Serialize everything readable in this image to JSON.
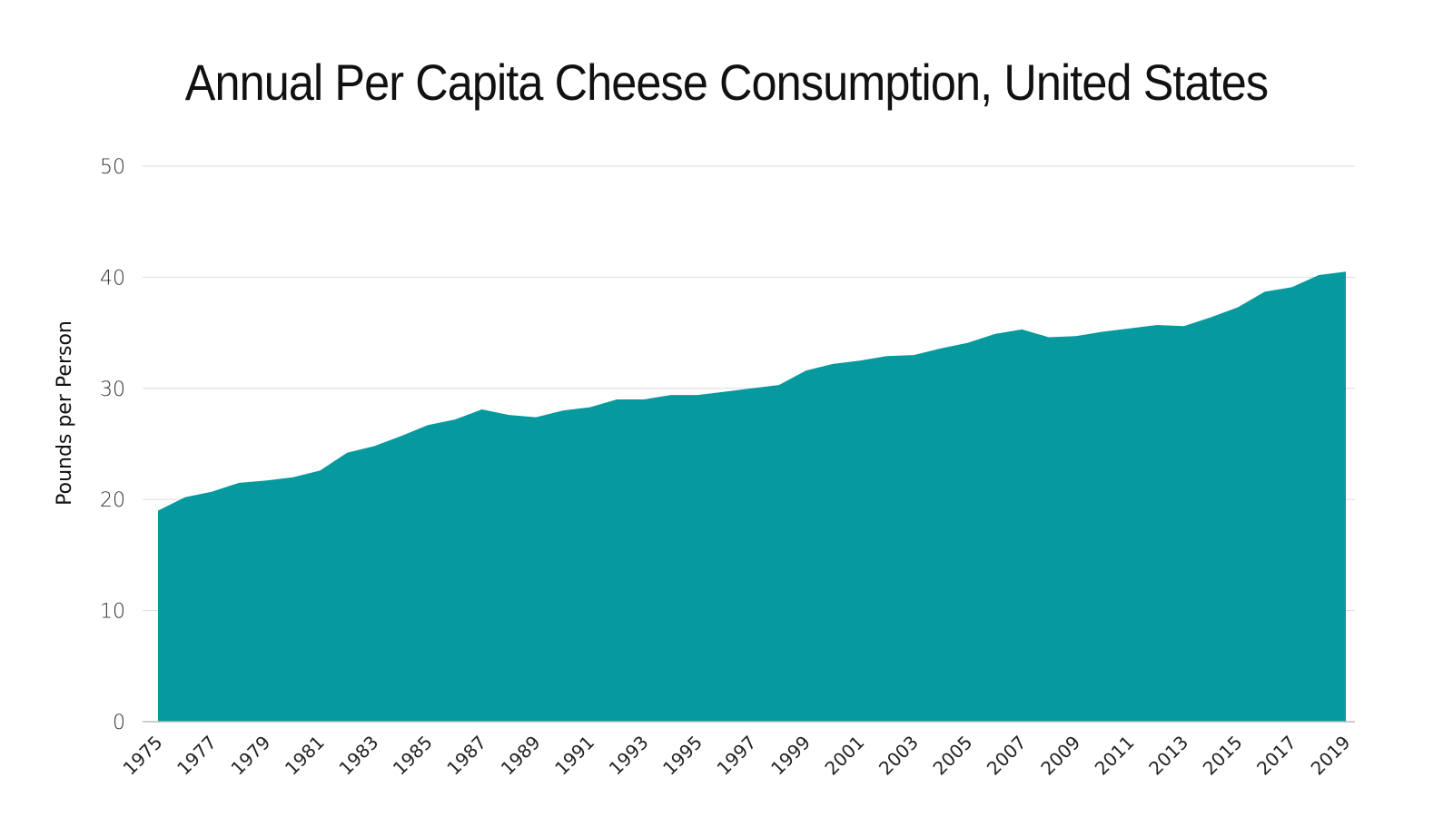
{
  "chart_data": {
    "type": "area",
    "title": "Annual Per Capita Cheese Consumption, United States",
    "xlabel": "",
    "ylabel": "Pounds per Person",
    "ylim": [
      0,
      50
    ],
    "yticks": [
      "0",
      "10",
      "20",
      "30",
      "40",
      "50"
    ],
    "grid": true,
    "legend": "none",
    "color": "#06999d",
    "x": [
      1975,
      1976,
      1977,
      1978,
      1979,
      1980,
      1981,
      1982,
      1983,
      1984,
      1985,
      1986,
      1987,
      1988,
      1989,
      1990,
      1991,
      1992,
      1993,
      1994,
      1995,
      1996,
      1997,
      1998,
      1999,
      2000,
      2001,
      2002,
      2003,
      2004,
      2005,
      2006,
      2007,
      2008,
      2009,
      2010,
      2011,
      2012,
      2013,
      2014,
      2015,
      2016,
      2017,
      2018,
      2019
    ],
    "xtick_labels": [
      "1975",
      "1977",
      "1979",
      "1981",
      "1983",
      "1985",
      "1987",
      "1989",
      "1991",
      "1993",
      "1995",
      "1997",
      "1999",
      "2001",
      "2003",
      "2005",
      "2007",
      "2009",
      "2011",
      "2013",
      "2015",
      "2017",
      "2019"
    ],
    "series": [
      {
        "values": [
          19.0,
          20.2,
          20.7,
          21.5,
          21.7,
          22.0,
          22.6,
          24.2,
          24.8,
          25.7,
          26.7,
          27.2,
          28.1,
          27.6,
          27.4,
          28.0,
          28.3,
          29.0,
          29.0,
          29.4,
          29.4,
          29.7,
          30.0,
          30.3,
          31.6,
          32.2,
          32.5,
          32.9,
          33.0,
          33.6,
          34.1,
          34.9,
          35.3,
          34.6,
          34.7,
          35.1,
          35.4,
          35.7,
          35.6,
          36.4,
          37.3,
          38.7,
          39.1,
          40.2,
          40.5
        ]
      }
    ]
  }
}
